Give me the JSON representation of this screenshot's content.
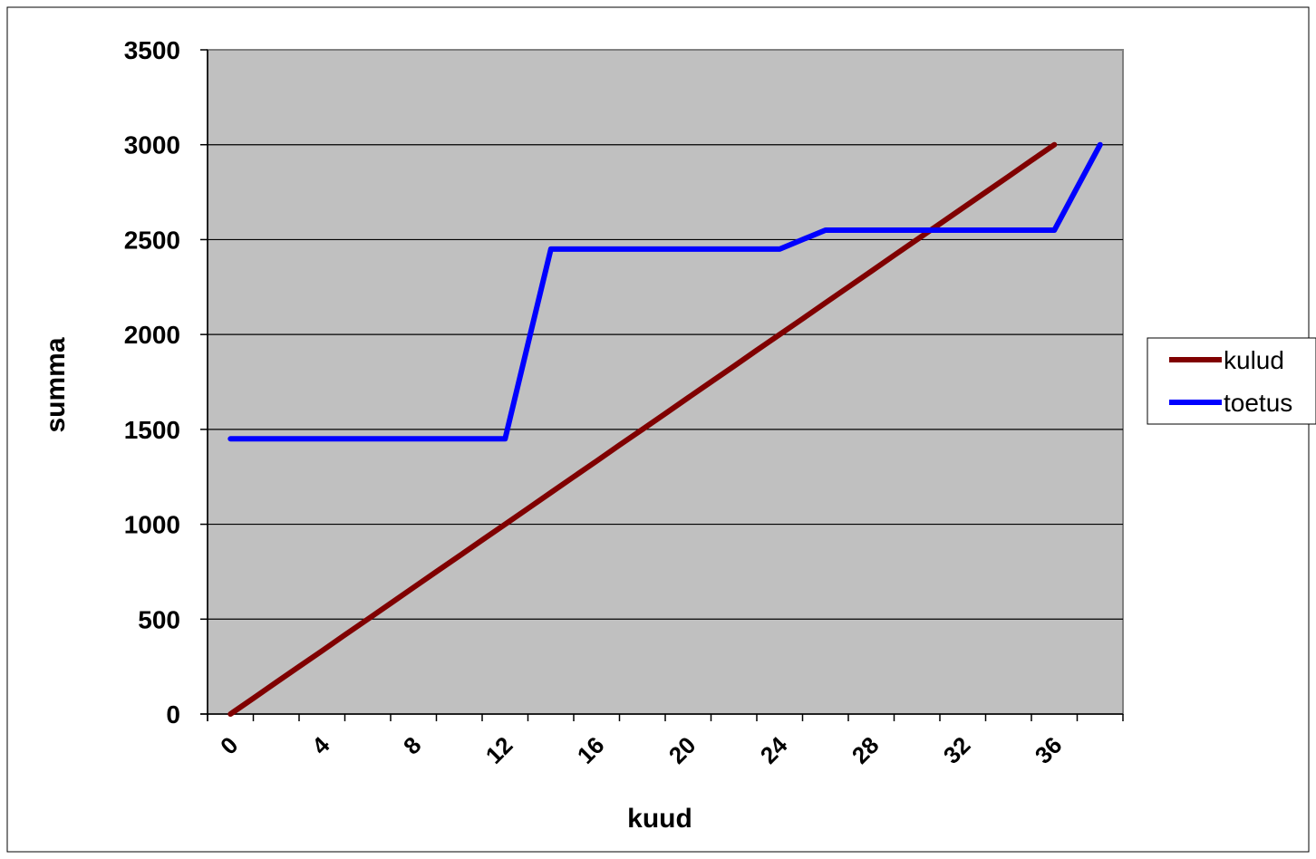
{
  "chart_data": {
    "type": "line",
    "title": "",
    "xlabel": "kuud",
    "ylabel": "summa",
    "x": [
      0,
      1,
      2,
      3,
      4,
      5,
      6,
      7,
      8,
      9,
      10,
      11,
      12,
      13,
      14,
      15,
      16,
      17,
      18,
      19,
      20,
      21,
      22,
      23,
      24,
      25,
      26,
      27,
      28,
      29,
      30,
      31,
      32,
      33,
      34,
      35,
      36,
      37,
      38
    ],
    "x_tick_labels": [
      "0",
      "4",
      "8",
      "12",
      "16",
      "20",
      "24",
      "28",
      "32",
      "36"
    ],
    "x_tick_values": [
      0,
      4,
      8,
      12,
      16,
      20,
      24,
      28,
      32,
      36
    ],
    "ylim": [
      0,
      3500
    ],
    "y_ticks": [
      0,
      500,
      1000,
      1500,
      2000,
      2500,
      3000,
      3500
    ],
    "y_tick_labels": [
      "0",
      "500",
      "1000",
      "1500",
      "2000",
      "2500",
      "3000",
      "3500"
    ],
    "grid": "horizontal",
    "plot_background": "#c0c0c0",
    "legend_position": "right",
    "series": [
      {
        "name": "kulud",
        "color": "#800000",
        "values": [
          0,
          83,
          167,
          250,
          333,
          417,
          500,
          583,
          667,
          750,
          833,
          917,
          1000,
          1083,
          1167,
          1250,
          1333,
          1417,
          1500,
          1583,
          1667,
          1750,
          1833,
          1917,
          2000,
          2083,
          2167,
          2250,
          2333,
          2417,
          2500,
          2583,
          2667,
          2750,
          2833,
          2917,
          3000,
          null,
          null
        ]
      },
      {
        "name": "toetus",
        "color": "#0000ff",
        "values": [
          1450,
          1450,
          1450,
          1450,
          1450,
          1450,
          1450,
          1450,
          1450,
          1450,
          1450,
          1450,
          1450,
          1950,
          2450,
          2450,
          2450,
          2450,
          2450,
          2450,
          2450,
          2450,
          2450,
          2450,
          2450,
          2500,
          2550,
          2550,
          2550,
          2550,
          2550,
          2550,
          2550,
          2550,
          2550,
          2550,
          2550,
          2775,
          3000
        ]
      }
    ]
  }
}
